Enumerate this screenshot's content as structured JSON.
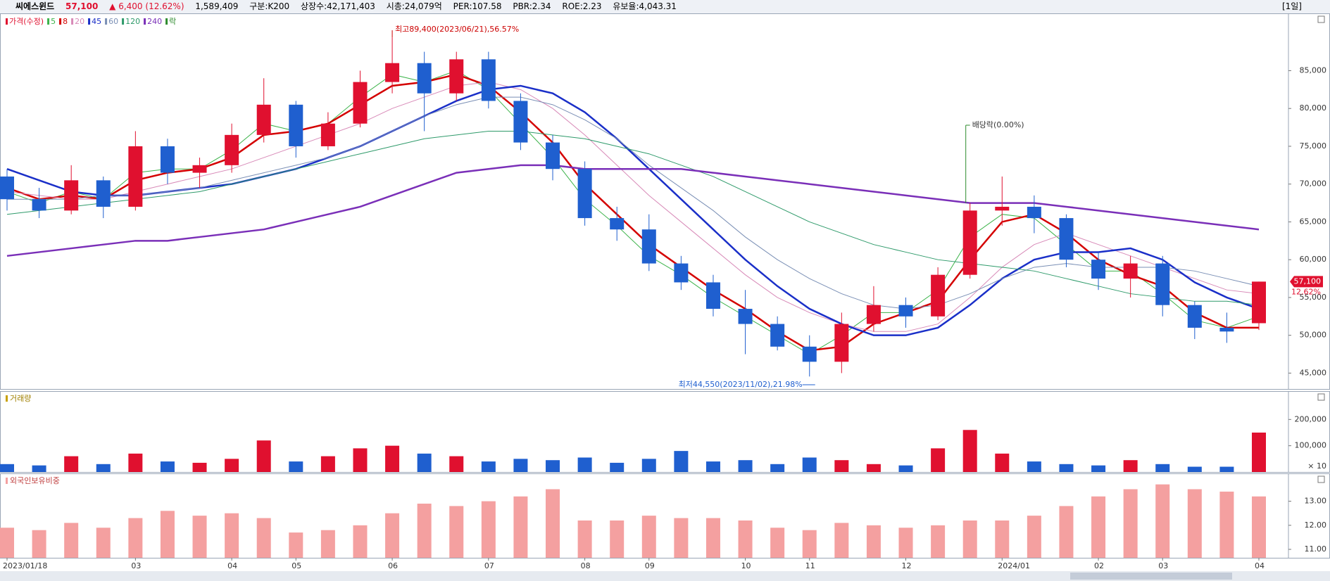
{
  "header": {
    "name": "씨에스윈드",
    "price": "57,100",
    "change": "▲ 6,400 (12.62%)",
    "volume": "1,589,409",
    "group": "구분:K200",
    "shares": "상장수:42,171,403",
    "cap": "시총:24,079억",
    "per": "PER:107.58",
    "pbr": "PBR:2.34",
    "roe": "ROE:2.23",
    "reserve": "유보율:4,043.31",
    "period": "[1일]"
  },
  "chart_data": [
    {
      "type": "candlestick",
      "name": "가격(수정)",
      "up_color": "#e0102f",
      "down_color": "#1f5fcf",
      "open": [
        71000,
        68000,
        66500,
        70500,
        67000,
        75000,
        71500,
        72500,
        76500,
        80500,
        75000,
        78000,
        83500,
        86000,
        82000,
        86500,
        81000,
        75500,
        72000,
        65500,
        64000,
        59500,
        57000,
        53500,
        51500,
        48500,
        46500,
        51500,
        54000,
        52500,
        58000,
        66500,
        67000,
        65500,
        60000,
        57500,
        59500,
        54000,
        51000,
        51600
      ],
      "high": [
        72000,
        69500,
        72500,
        71000,
        77000,
        76000,
        73500,
        78000,
        84000,
        81000,
        79500,
        85000,
        89400,
        87500,
        87500,
        87500,
        82000,
        76500,
        73000,
        67000,
        66000,
        60500,
        58000,
        56000,
        52500,
        50000,
        53000,
        56500,
        55000,
        59000,
        67500,
        71000,
        68500,
        66000,
        61000,
        60500,
        60500,
        54500,
        53000,
        57100
      ],
      "low": [
        66500,
        65500,
        66000,
        65500,
        66500,
        70000,
        69500,
        71500,
        75500,
        73500,
        74500,
        77500,
        82000,
        77000,
        81000,
        80000,
        74500,
        70500,
        64500,
        62500,
        58500,
        56000,
        52500,
        47500,
        48000,
        44550,
        45000,
        50500,
        51000,
        52000,
        57500,
        64500,
        63500,
        59000,
        56000,
        55000,
        52500,
        49500,
        49000,
        50700
      ],
      "close": [
        68000,
        66500,
        70500,
        67000,
        75000,
        71500,
        72500,
        76500,
        80500,
        75000,
        78000,
        83500,
        86000,
        82000,
        86500,
        81000,
        75500,
        72000,
        65500,
        64000,
        59500,
        57000,
        53500,
        51500,
        48500,
        46500,
        51500,
        54000,
        52500,
        58000,
        66500,
        67000,
        65500,
        60000,
        57500,
        59500,
        54000,
        51000,
        50500,
        57100
      ],
      "series": [
        {
          "name": "5",
          "color": "#3cb34a",
          "values": [
            69000,
            67500,
            69000,
            68000,
            71500,
            72000,
            72000,
            74500,
            78000,
            77000,
            78000,
            81500,
            84500,
            83500,
            85000,
            82500,
            78000,
            73500,
            68000,
            64500,
            60500,
            58000,
            55000,
            52500,
            50000,
            47500,
            50000,
            53000,
            53000,
            56000,
            63000,
            66000,
            65500,
            62000,
            58500,
            58500,
            55500,
            52000,
            51000,
            52500
          ]
        },
        {
          "name": "8",
          "color": "#d40000",
          "values": [
            69500,
            68000,
            68500,
            68000,
            70500,
            71500,
            72000,
            73500,
            76500,
            77000,
            78000,
            80500,
            83000,
            83500,
            84500,
            83000,
            79500,
            75500,
            70000,
            66000,
            62000,
            59000,
            56000,
            53500,
            50500,
            48000,
            48500,
            51500,
            53000,
            54500,
            60000,
            65000,
            66000,
            63500,
            60000,
            58000,
            56500,
            53000,
            51000,
            51000
          ]
        },
        {
          "name": "20",
          "color": "#d88ab8",
          "values": [
            69000,
            68500,
            68000,
            68000,
            69000,
            70000,
            71000,
            72000,
            73500,
            75000,
            76500,
            78000,
            80000,
            81500,
            83000,
            83500,
            82500,
            80000,
            76500,
            72500,
            68500,
            65000,
            61500,
            58000,
            55000,
            53000,
            51500,
            50500,
            50500,
            51500,
            55000,
            59000,
            62000,
            63500,
            62000,
            60500,
            59000,
            57500,
            56000,
            55500
          ]
        },
        {
          "name": "45",
          "color": "#1a2fc8",
          "values": [
            72000,
            70500,
            69000,
            68500,
            68500,
            69000,
            69500,
            70000,
            71000,
            72000,
            73500,
            75000,
            77000,
            79000,
            81000,
            82500,
            83000,
            82000,
            79500,
            76000,
            72000,
            68000,
            64000,
            60000,
            56500,
            53500,
            51500,
            50000,
            50000,
            51000,
            54000,
            57500,
            60000,
            61000,
            61000,
            61500,
            60000,
            57000,
            55000,
            53500
          ]
        },
        {
          "name": "60",
          "color": "#7a8fb5",
          "values": [
            68000,
            68000,
            68000,
            68500,
            68500,
            69000,
            69500,
            70500,
            71500,
            72500,
            73500,
            75000,
            77000,
            79000,
            80500,
            81500,
            81500,
            80500,
            78500,
            76000,
            72500,
            69500,
            66500,
            63000,
            60000,
            57500,
            55500,
            54000,
            53500,
            54000,
            55500,
            57500,
            59000,
            59500,
            59000,
            59000,
            59000,
            58500,
            57500,
            56500
          ]
        },
        {
          "name": "120",
          "color": "#2e9a6a",
          "values": [
            66000,
            66500,
            67000,
            67500,
            68000,
            68500,
            69000,
            70000,
            71000,
            72000,
            73000,
            74000,
            75000,
            76000,
            76500,
            77000,
            77000,
            76500,
            76000,
            75000,
            74000,
            72500,
            71000,
            69000,
            67000,
            65000,
            63500,
            62000,
            61000,
            60000,
            59500,
            59000,
            58500,
            57500,
            56500,
            55500,
            55000,
            54500,
            54500,
            54000
          ]
        },
        {
          "name": "240",
          "color": "#7a2fb8",
          "values": [
            60500,
            61000,
            61500,
            62000,
            62500,
            62500,
            63000,
            63500,
            64000,
            65000,
            66000,
            67000,
            68500,
            70000,
            71500,
            72000,
            72500,
            72500,
            72000,
            72000,
            72000,
            72000,
            71500,
            71000,
            70500,
            70000,
            69500,
            69000,
            68500,
            68000,
            67500,
            67500,
            67500,
            67000,
            66500,
            66000,
            65500,
            65000,
            64500,
            64000
          ]
        }
      ],
      "ylim": [
        42900,
        92300
      ],
      "yticks": [
        {
          "value": 45000,
          "label": "45,000"
        },
        {
          "value": 50000,
          "label": "50,000"
        },
        {
          "value": 55000,
          "label": "55,000"
        },
        {
          "value": 60000,
          "label": "60,000"
        },
        {
          "value": 65000,
          "label": "65,000"
        },
        {
          "value": 70000,
          "label": "70,000"
        },
        {
          "value": 75000,
          "label": "75,000"
        },
        {
          "value": 80000,
          "label": "80,000"
        },
        {
          "value": 85000,
          "label": "85,000"
        }
      ],
      "high_label": "최고89,400(2023/06/21),56.57%",
      "low_label": "최저44,550(2023/11/02),21.98%",
      "ex_dividend": {
        "legend": "락",
        "label": "배당락(0.00%)",
        "x_index": 30,
        "color": "#2e8b2e"
      },
      "current_label": "57,100",
      "current_change": "12.62%",
      "grid": false
    },
    {
      "type": "bar",
      "title": "거래량",
      "unit_label": "× 10",
      "values": [
        30000,
        25000,
        60000,
        30000,
        70000,
        40000,
        35000,
        50000,
        120000,
        40000,
        60000,
        90000,
        100000,
        70000,
        60000,
        40000,
        50000,
        45000,
        55000,
        35000,
        50000,
        80000,
        40000,
        45000,
        30000,
        55000,
        45000,
        30000,
        25000,
        90000,
        160000,
        70000,
        40000,
        30000,
        25000,
        45000,
        30000,
        20000,
        20000,
        150000
      ],
      "ylim": [
        0,
        300000
      ],
      "yticks": [
        {
          "value": 100000,
          "label": "100,000"
        },
        {
          "value": 200000,
          "label": "200,000"
        }
      ],
      "grid": false
    },
    {
      "type": "bar",
      "title": "외국인보유비중",
      "color": "#f4a0a0",
      "categories": [
        "2023/01/18",
        null,
        null,
        null,
        "03",
        null,
        null,
        "04",
        null,
        "05",
        null,
        null,
        "06",
        null,
        null,
        "07",
        null,
        null,
        "08",
        null,
        "09",
        null,
        null,
        "10",
        null,
        "11",
        null,
        null,
        "12",
        null,
        null,
        "2024/01",
        null,
        null,
        "02",
        null,
        "03",
        null,
        null,
        "04"
      ],
      "values": [
        11.9,
        11.8,
        12.1,
        11.9,
        12.3,
        12.6,
        12.4,
        12.5,
        12.3,
        11.7,
        11.8,
        12.0,
        12.5,
        12.9,
        12.8,
        13.0,
        13.2,
        13.5,
        12.2,
        12.2,
        12.4,
        12.3,
        12.3,
        12.2,
        11.9,
        11.8,
        12.1,
        12.0,
        11.9,
        12.0,
        12.2,
        12.2,
        12.4,
        12.8,
        13.2,
        13.5,
        13.7,
        13.5,
        13.4,
        13.2
      ],
      "ylim": [
        10.65,
        14.07
      ],
      "yticks": [
        {
          "value": 11,
          "label": "11.00"
        },
        {
          "value": 12,
          "label": "12.00"
        },
        {
          "value": 13,
          "label": "13.00"
        }
      ],
      "grid": false
    }
  ]
}
